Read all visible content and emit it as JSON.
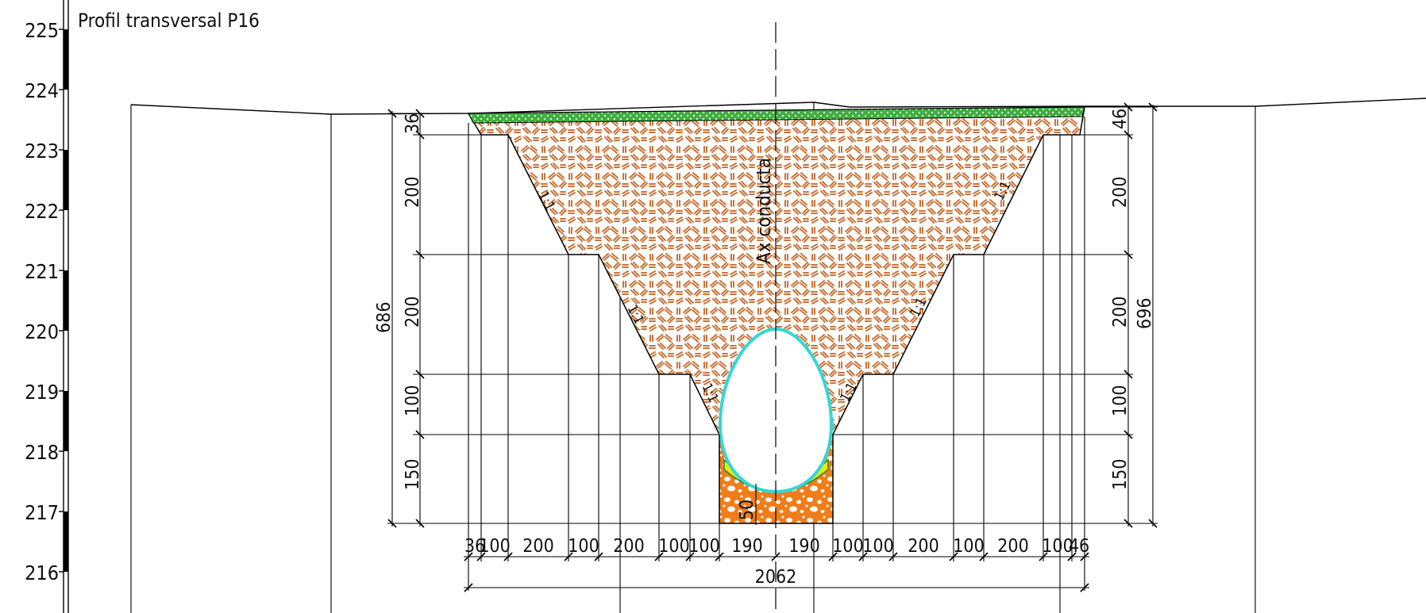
{
  "title": "Profil transversal P16",
  "axis_label": "Ax conducta",
  "elevation_labels": [
    "225",
    "224",
    "223",
    "222",
    "221",
    "220",
    "219",
    "218",
    "217",
    "216"
  ],
  "left_vertical_dims": [
    "36",
    "200",
    "200",
    "100",
    "150"
  ],
  "right_vertical_dims": [
    "46",
    "200",
    "200",
    "100",
    "150"
  ],
  "total_left": "686",
  "total_right": "696",
  "bottom_dims": [
    "36",
    "100",
    "200",
    "100",
    "200",
    "100",
    "100",
    "190",
    "190",
    "100",
    "100",
    "200",
    "100",
    "200",
    "100",
    "46"
  ],
  "total_width": "2062",
  "bedding_dim": "50",
  "slope_labels": [
    "1:1",
    "1:1",
    "1:1",
    "1:1",
    "1:1",
    "1:1"
  ],
  "colors": {
    "backfill": "#c8743a",
    "backfill_bg": "#ffffff",
    "topsoil": "#3fae3f",
    "bedding": "#f07d1a",
    "pipe": "#35d6d6",
    "pipe_bed": "#e8e81a"
  }
}
